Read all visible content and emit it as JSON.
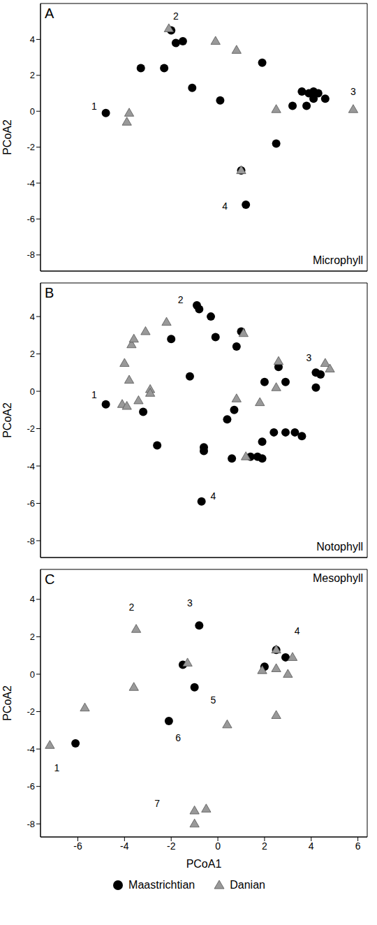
{
  "chart_data": [
    {
      "type": "scatter",
      "label": "A",
      "title": "Microphyll",
      "ylabel": "PCoA2",
      "xlim": [
        -7.6,
        6.4
      ],
      "xticks": [
        -6,
        -4,
        -2,
        0,
        2,
        4,
        6
      ],
      "ylim": [
        -8.9,
        6.0
      ],
      "yticks": [
        -8,
        -6,
        -4,
        -2,
        0,
        2,
        4
      ],
      "tick_labels": "y",
      "series": [
        {
          "name": "Maastrichtian",
          "color": "#000000",
          "marker": "circle",
          "x": [
            -4.8,
            -2.0,
            -1.8,
            -1.5,
            -3.3,
            -2.3,
            -1.1,
            0.1,
            1.9,
            1.0,
            1.2,
            2.5,
            3.2,
            3.6,
            3.8,
            3.9,
            4.1,
            4.1,
            4.3,
            4.6
          ],
          "values": [
            -0.1,
            4.5,
            3.8,
            3.9,
            2.4,
            2.4,
            1.3,
            0.6,
            2.7,
            -3.3,
            -5.2,
            -1.8,
            0.3,
            1.1,
            0.3,
            1.0,
            1.1,
            0.7,
            1.0,
            0.7
          ]
        },
        {
          "name": "Danian",
          "color": "#999999",
          "marker": "triangle",
          "x": [
            -2.1,
            -0.1,
            0.8,
            -3.8,
            -3.9,
            2.5,
            5.8,
            1.0
          ],
          "values": [
            4.6,
            3.9,
            3.4,
            -0.1,
            -0.6,
            0.1,
            0.1,
            -3.3
          ]
        }
      ],
      "annotations": [
        {
          "text": "1",
          "x": -5.3,
          "y": 0.3
        },
        {
          "text": "2",
          "x": -1.8,
          "y": 5.3
        },
        {
          "text": "3",
          "x": 5.8,
          "y": 1.1
        },
        {
          "text": "4",
          "x": 0.3,
          "y": -5.3
        }
      ]
    },
    {
      "type": "scatter",
      "label": "B",
      "title": "Notophyll",
      "ylabel": "PCoA2",
      "xlim": [
        -7.6,
        6.4
      ],
      "xticks": [
        -6,
        -4,
        -2,
        0,
        2,
        4,
        6
      ],
      "ylim": [
        -8.9,
        5.8
      ],
      "yticks": [
        -8,
        -6,
        -4,
        -2,
        0,
        2,
        4
      ],
      "tick_labels": "y",
      "series": [
        {
          "name": "Maastrichtian",
          "color": "#000000",
          "marker": "circle",
          "x": [
            -4.8,
            -3.2,
            -2.0,
            -2.6,
            -1.2,
            -0.9,
            -0.8,
            -0.3,
            -0.1,
            0.8,
            1.0,
            -0.6,
            -0.6,
            0.4,
            0.7,
            0.6,
            1.4,
            1.7,
            1.9,
            1.9,
            2.0,
            2.6,
            2.9,
            2.4,
            2.9,
            3.3,
            3.6,
            4.2,
            4.2,
            4.4,
            -0.7
          ],
          "values": [
            -0.7,
            -1.1,
            2.8,
            -2.9,
            0.8,
            4.6,
            4.4,
            4.0,
            2.9,
            2.4,
            3.2,
            -3.0,
            -3.2,
            -1.5,
            -1.0,
            -3.6,
            -3.5,
            -3.5,
            -3.6,
            -2.7,
            0.5,
            1.3,
            0.5,
            -2.2,
            -2.2,
            -2.2,
            -2.4,
            1.0,
            0.2,
            0.9,
            -5.9
          ]
        },
        {
          "name": "Danian",
          "color": "#999999",
          "marker": "triangle",
          "x": [
            -4.1,
            -3.9,
            -4.0,
            -3.8,
            -3.7,
            -3.6,
            -3.1,
            -2.2,
            -3.4,
            -2.9,
            -2.9,
            1.1,
            0.8,
            1.8,
            1.2,
            2.6,
            2.5,
            4.6,
            4.8
          ],
          "values": [
            -0.7,
            -0.8,
            1.5,
            0.6,
            2.5,
            2.8,
            3.2,
            3.7,
            -0.5,
            0.1,
            -0.1,
            3.1,
            -0.4,
            -0.6,
            -3.5,
            1.6,
            0.2,
            1.5,
            1.2
          ]
        }
      ],
      "annotations": [
        {
          "text": "1",
          "x": -5.3,
          "y": -0.2
        },
        {
          "text": "2",
          "x": -1.6,
          "y": 4.9
        },
        {
          "text": "3",
          "x": 3.9,
          "y": 1.8
        },
        {
          "text": "4",
          "x": -0.2,
          "y": -5.6
        }
      ]
    },
    {
      "type": "scatter",
      "label": "C",
      "title": "Mesophyll",
      "xlabel": "PCoA1",
      "ylabel": "PCoA2",
      "xlim": [
        -7.6,
        6.4
      ],
      "xticks": [
        -6,
        -4,
        -2,
        0,
        2,
        4,
        6
      ],
      "ylim": [
        -8.7,
        5.6
      ],
      "yticks": [
        -8,
        -6,
        -4,
        -2,
        0,
        2,
        4
      ],
      "legend": "bottom",
      "series": [
        {
          "name": "Maastrichtian",
          "color": "#000000",
          "marker": "circle",
          "x": [
            -6.1,
            -1.5,
            -1.0,
            -0.8,
            -2.1,
            2.0,
            2.5,
            2.9
          ],
          "values": [
            -3.7,
            0.5,
            -0.7,
            2.6,
            -2.5,
            0.4,
            1.3,
            0.9
          ]
        },
        {
          "name": "Danian",
          "color": "#999999",
          "marker": "triangle",
          "x": [
            -7.2,
            -5.7,
            -3.6,
            -3.5,
            -1.3,
            0.4,
            -1.0,
            -0.5,
            -1.0,
            1.9,
            2.5,
            2.5,
            3.0,
            3.2,
            2.5
          ],
          "values": [
            -3.8,
            -1.8,
            -0.7,
            2.4,
            0.6,
            -2.7,
            -7.3,
            -7.2,
            -8.0,
            0.2,
            1.3,
            0.3,
            0.0,
            0.9,
            -2.2
          ]
        }
      ],
      "annotations": [
        {
          "text": "1",
          "x": -6.9,
          "y": -5.0
        },
        {
          "text": "2",
          "x": -3.7,
          "y": 3.6
        },
        {
          "text": "3",
          "x": -1.2,
          "y": 3.8
        },
        {
          "text": "4",
          "x": 3.4,
          "y": 2.3
        },
        {
          "text": "5",
          "x": -0.2,
          "y": -1.4
        },
        {
          "text": "6",
          "x": -1.7,
          "y": -3.4
        },
        {
          "text": "7",
          "x": -2.6,
          "y": -6.9
        }
      ]
    }
  ]
}
